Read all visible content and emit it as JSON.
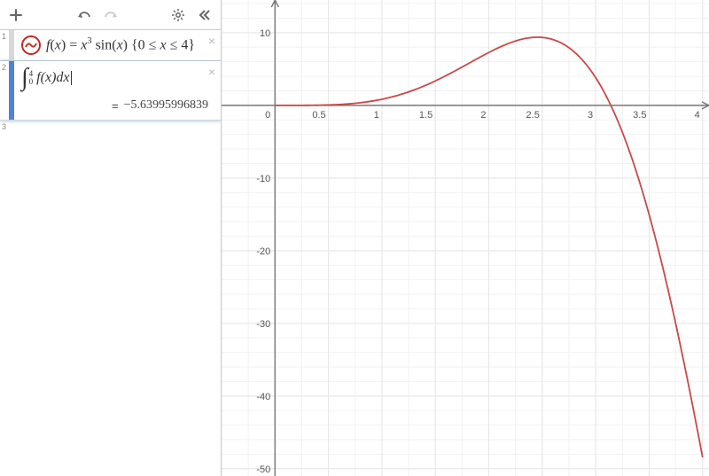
{
  "toolbar": {
    "add_tooltip": "+",
    "undo_tooltip": "Undo",
    "redo_tooltip": "Redo",
    "settings_tooltip": "Settings",
    "collapse_tooltip": "Collapse"
  },
  "expressions": [
    {
      "index": "1",
      "kind": "function",
      "latex_display": "f(x) = x^3 sin(x) {0 ≤ x ≤ 4}",
      "color": "#c0392b",
      "selected": false
    },
    {
      "index": "2",
      "kind": "integral",
      "lower": "0",
      "upper": "4",
      "integrand": "f(x) dx",
      "result": "−5.63995996839",
      "selected": true
    },
    {
      "index": "3",
      "kind": "empty"
    }
  ],
  "graph": {
    "type": "line",
    "xlim": [
      -0.5,
      4.06
    ],
    "ylim": [
      -51,
      14.5
    ],
    "x_tick_step": 0.5,
    "y_tick_step": 10,
    "x_minor_per_major": 2,
    "y_minor_per_major": 5,
    "axis_color": "#777777",
    "grid_color": "#e6e6e6",
    "minor_grid_color": "#f2f2f2",
    "background_color": "#ffffff",
    "label_fontsize": 11,
    "label_color": "#555555",
    "curve_color": "#ca4848",
    "curve_width": 1.8,
    "function": "x^3 * sin(x)",
    "domain": [
      0,
      4
    ],
    "sample_points": 200
  }
}
